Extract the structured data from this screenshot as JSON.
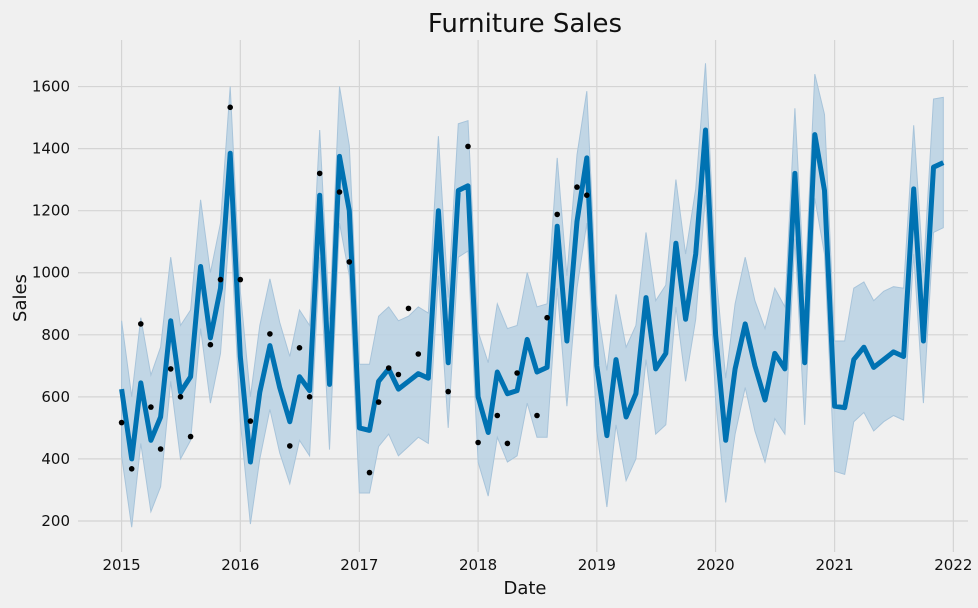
{
  "chart_data": {
    "type": "line",
    "title": "Furniture Sales",
    "xlabel": "Date",
    "ylabel": "Sales",
    "xlim": [
      "2014-08-20",
      "2022-02-15"
    ],
    "ylim": [
      100,
      1750
    ],
    "x_ticks": [
      "2015",
      "2016",
      "2017",
      "2018",
      "2019",
      "2020",
      "2021",
      "2022"
    ],
    "y_ticks": [
      200,
      400,
      600,
      800,
      1000,
      1200,
      1400,
      1600
    ],
    "grid": true,
    "colors": {
      "background": "#f0f0f0",
      "forecast": "#0072b2",
      "band": "#b8d1e3",
      "points": "#000000"
    },
    "series": [
      {
        "type": "observed-points",
        "x": [
          "2015-01-01",
          "2015-02-01",
          "2015-03-01",
          "2015-04-01",
          "2015-05-01",
          "2015-06-01",
          "2015-07-01",
          "2015-08-01",
          "2015-10-01",
          "2015-11-01",
          "2015-12-01",
          "2016-01-01",
          "2016-02-01",
          "2016-04-01",
          "2016-06-01",
          "2016-07-01",
          "2016-08-01",
          "2016-09-01",
          "2016-11-01",
          "2016-12-01",
          "2017-02-01",
          "2017-03-01",
          "2017-04-01",
          "2017-05-01",
          "2017-06-01",
          "2017-07-01",
          "2017-10-01",
          "2017-12-01",
          "2018-01-01",
          "2018-03-01",
          "2018-04-01",
          "2018-05-01",
          "2018-07-01",
          "2018-08-01",
          "2018-09-01",
          "2018-11-01",
          "2018-12-01"
        ],
        "y": [
          517,
          368,
          835,
          567,
          432,
          690,
          600,
          472,
          768,
          978,
          1533,
          978,
          522,
          803,
          442,
          758,
          600,
          1320,
          1260,
          1035,
          356,
          583,
          693,
          672,
          885,
          738,
          617,
          1407,
          453,
          540,
          450,
          677,
          540,
          855,
          1188,
          1276,
          1250
        ]
      },
      {
        "type": "forecast-line",
        "x": [
          "2015-01-01",
          "2015-02-01",
          "2015-03-01",
          "2015-04-01",
          "2015-05-01",
          "2015-06-01",
          "2015-07-01",
          "2015-08-01",
          "2015-09-01",
          "2015-10-01",
          "2015-11-01",
          "2015-12-01",
          "2016-01-01",
          "2016-02-01",
          "2016-03-01",
          "2016-04-01",
          "2016-05-01",
          "2016-06-01",
          "2016-07-01",
          "2016-08-01",
          "2016-09-01",
          "2016-10-01",
          "2016-11-01",
          "2016-12-01",
          "2017-01-01",
          "2017-02-01",
          "2017-03-01",
          "2017-04-01",
          "2017-05-01",
          "2017-06-01",
          "2017-07-01",
          "2017-08-01",
          "2017-09-01",
          "2017-10-01",
          "2017-11-01",
          "2017-12-01",
          "2018-01-01",
          "2018-02-01",
          "2018-03-01",
          "2018-04-01",
          "2018-05-01",
          "2018-06-01",
          "2018-07-01",
          "2018-08-01",
          "2018-09-01",
          "2018-10-01",
          "2018-11-01",
          "2018-12-01",
          "2019-01-01",
          "2019-02-01",
          "2019-03-01",
          "2019-04-01",
          "2019-05-01",
          "2019-06-01",
          "2019-07-01",
          "2019-08-01",
          "2019-09-01",
          "2019-10-01",
          "2019-11-01",
          "2019-12-01",
          "2020-01-01",
          "2020-02-01",
          "2020-03-01",
          "2020-04-01",
          "2020-05-01",
          "2020-06-01",
          "2020-07-01",
          "2020-08-01",
          "2020-09-01",
          "2020-10-01",
          "2020-11-01",
          "2020-12-01",
          "2021-01-01",
          "2021-02-01",
          "2021-03-01",
          "2021-04-01",
          "2021-05-01",
          "2021-06-01",
          "2021-07-01",
          "2021-08-01",
          "2021-09-01",
          "2021-10-01",
          "2021-11-01",
          "2021-12-01"
        ],
        "y": [
          625,
          400,
          645,
          460,
          535,
          845,
          615,
          665,
          1020,
          790,
          950,
          1385,
          730,
          390,
          615,
          765,
          630,
          520,
          665,
          620,
          1250,
          640,
          1375,
          1200,
          500,
          492,
          650,
          690,
          625,
          650,
          675,
          660,
          1200,
          710,
          1265,
          1280,
          600,
          485,
          680,
          610,
          620,
          785,
          680,
          695,
          1150,
          780,
          1165,
          1370,
          700,
          475,
          720,
          535,
          610,
          920,
          690,
          740,
          1095,
          850,
          1060,
          1460,
          800,
          460,
          690,
          835,
          700,
          590,
          740,
          690,
          1320,
          710,
          1445,
          1265,
          570,
          565,
          720,
          760,
          695,
          720,
          745,
          730,
          1270,
          780,
          1340,
          1355
        ]
      },
      {
        "type": "uncertainty-band",
        "x": [
          "2015-01-01",
          "2015-02-01",
          "2015-03-01",
          "2015-04-01",
          "2015-05-01",
          "2015-06-01",
          "2015-07-01",
          "2015-08-01",
          "2015-09-01",
          "2015-10-01",
          "2015-11-01",
          "2015-12-01",
          "2016-01-01",
          "2016-02-01",
          "2016-03-01",
          "2016-04-01",
          "2016-05-01",
          "2016-06-01",
          "2016-07-01",
          "2016-08-01",
          "2016-09-01",
          "2016-10-01",
          "2016-11-01",
          "2016-12-01",
          "2017-01-01",
          "2017-02-01",
          "2017-03-01",
          "2017-04-01",
          "2017-05-01",
          "2017-06-01",
          "2017-07-01",
          "2017-08-01",
          "2017-09-01",
          "2017-10-01",
          "2017-11-01",
          "2017-12-01",
          "2018-01-01",
          "2018-02-01",
          "2018-03-01",
          "2018-04-01",
          "2018-05-01",
          "2018-06-01",
          "2018-07-01",
          "2018-08-01",
          "2018-09-01",
          "2018-10-01",
          "2018-11-01",
          "2018-12-01",
          "2019-01-01",
          "2019-02-01",
          "2019-03-01",
          "2019-04-01",
          "2019-05-01",
          "2019-06-01",
          "2019-07-01",
          "2019-08-01",
          "2019-09-01",
          "2019-10-01",
          "2019-11-01",
          "2019-12-01",
          "2020-01-01",
          "2020-02-01",
          "2020-03-01",
          "2020-04-01",
          "2020-05-01",
          "2020-06-01",
          "2020-07-01",
          "2020-08-01",
          "2020-09-01",
          "2020-10-01",
          "2020-11-01",
          "2020-12-01",
          "2021-01-01",
          "2021-02-01",
          "2021-03-01",
          "2021-04-01",
          "2021-05-01",
          "2021-06-01",
          "2021-07-01",
          "2021-08-01",
          "2021-09-01",
          "2021-10-01",
          "2021-11-01",
          "2021-12-01"
        ],
        "lower": [
          410,
          180,
          450,
          230,
          310,
          650,
          400,
          460,
          820,
          580,
          740,
          1170,
          520,
          190,
          400,
          560,
          420,
          320,
          460,
          410,
          1050,
          430,
          1160,
          990,
          290,
          290,
          440,
          480,
          410,
          440,
          470,
          450,
          990,
          500,
          1050,
          1070,
          390,
          280,
          470,
          390,
          410,
          580,
          470,
          470,
          950,
          570,
          950,
          1160,
          490,
          245,
          510,
          330,
          400,
          720,
          480,
          510,
          890,
          650,
          850,
          1250,
          590,
          260,
          480,
          630,
          490,
          390,
          530,
          480,
          1110,
          510,
          1240,
          1060,
          360,
          350,
          520,
          550,
          490,
          520,
          540,
          525,
          1060,
          580,
          1130,
          1145
        ],
        "upper": [
          845,
          600,
          855,
          670,
          760,
          1050,
          830,
          880,
          1235,
          1000,
          1160,
          1600,
          940,
          600,
          830,
          980,
          840,
          730,
          880,
          830,
          1460,
          850,
          1600,
          1410,
          705,
          705,
          860,
          890,
          845,
          860,
          890,
          870,
          1440,
          920,
          1480,
          1490,
          810,
          710,
          900,
          820,
          830,
          1000,
          890,
          900,
          1370,
          990,
          1380,
          1585,
          900,
          685,
          930,
          760,
          830,
          1130,
          910,
          960,
          1300,
          1060,
          1270,
          1675,
          1010,
          660,
          900,
          1050,
          910,
          820,
          950,
          890,
          1530,
          930,
          1640,
          1510,
          780,
          780,
          950,
          970,
          910,
          940,
          955,
          950,
          1475,
          1000,
          1560,
          1565
        ]
      }
    ]
  }
}
